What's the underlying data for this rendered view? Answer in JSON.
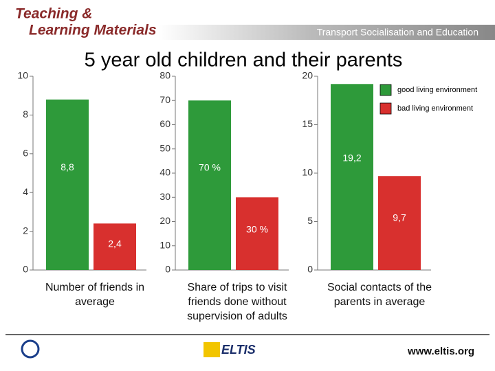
{
  "header": {
    "brand_line1": "Teaching &",
    "brand_line2": "Learning Materials",
    "topic": "Transport Socialisation and Education"
  },
  "title": "5 year old children and their parents",
  "legend": [
    {
      "name": "good living environment",
      "color": "#2e9a3a"
    },
    {
      "name": "bad living environment",
      "color": "#d8302e"
    }
  ],
  "chart_data": [
    {
      "type": "bar",
      "xlabel": "Number of friends in average",
      "ylim": [
        0,
        10
      ],
      "yticks": [
        0,
        2,
        4,
        6,
        8,
        10
      ],
      "values": [
        8.8,
        2.4
      ],
      "value_labels": [
        "8,8",
        "2,4"
      ]
    },
    {
      "type": "bar",
      "xlabel": "Share of trips to visit friends done without supervision of adults",
      "ylim": [
        0,
        80
      ],
      "yticks": [
        0,
        10,
        20,
        30,
        40,
        50,
        60,
        70,
        80
      ],
      "values": [
        70,
        30
      ],
      "value_labels": [
        "70 %",
        "30 %"
      ]
    },
    {
      "type": "bar",
      "xlabel": "Social contacts of the parents in average",
      "ylim": [
        0,
        20
      ],
      "yticks": [
        0,
        5,
        10,
        15,
        20
      ],
      "values": [
        19.2,
        9.7
      ],
      "value_labels": [
        "19,2",
        "9,7"
      ]
    }
  ],
  "footer": {
    "logo": "ELTIS",
    "url": "www.eltis.org"
  }
}
